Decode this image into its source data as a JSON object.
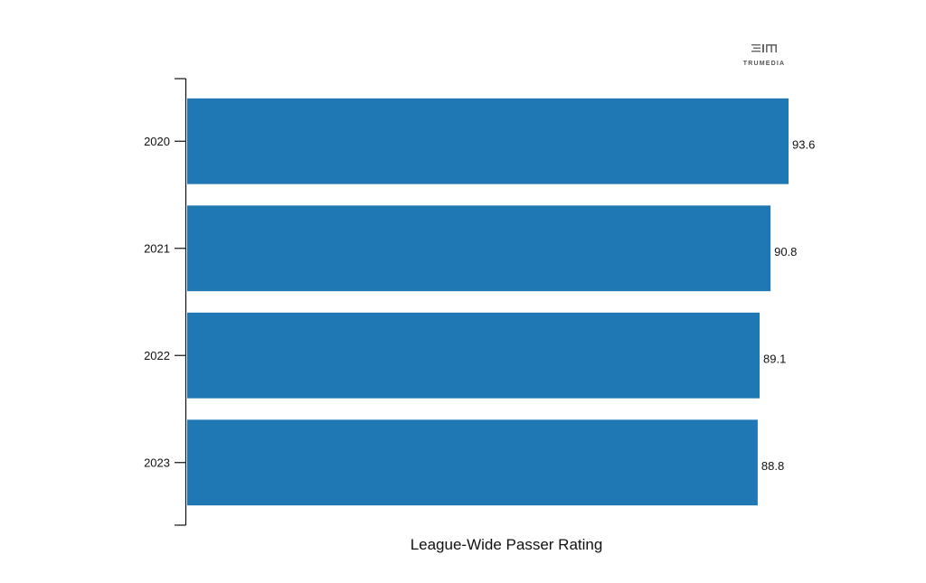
{
  "brand": {
    "logo_text": "TRUMEDIA",
    "logo_icon": "trumedia-logo-icon"
  },
  "chart_data": {
    "type": "bar",
    "orientation": "horizontal",
    "categories": [
      "2020",
      "2021",
      "2022",
      "2023"
    ],
    "values": [
      93.6,
      90.8,
      89.1,
      88.8
    ],
    "data_labels": [
      "93.6",
      "90.8",
      "89.1",
      "88.8"
    ],
    "xlabel": "League-Wide Passer Rating",
    "ylabel": "",
    "xlim": [
      0,
      93.6
    ],
    "grid": false,
    "legend": "none",
    "bar_color": "#1f77b4",
    "axis_color": "#111111"
  }
}
